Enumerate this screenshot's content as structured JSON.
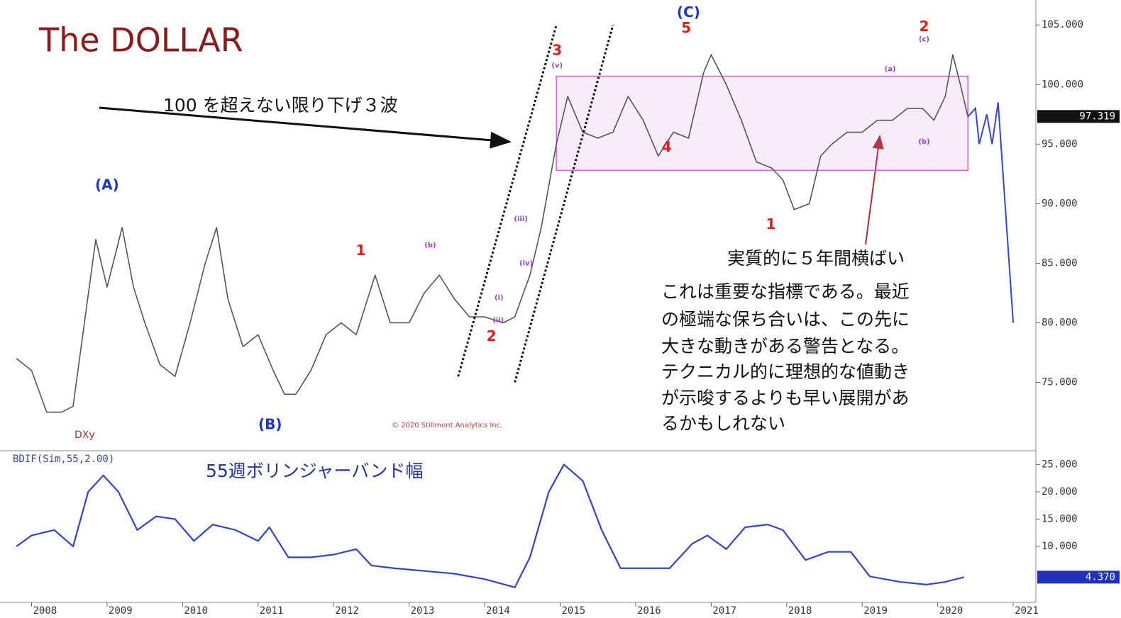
{
  "chart_data": [
    {
      "type": "line",
      "title": "The DOLLAR",
      "symbol": "DXy",
      "copyright": "© 2020 Stillmont Analytics Inc.",
      "annotations": [
        "100 を超えない限り下げ３波",
        "実質的に５年間横ばい"
      ],
      "note": [
        "これは重要な指標である。最近",
        "の極端な保ち合いは、この先に",
        "大きな動きがある警告となる。",
        "テクニカル的に理想的な値動き",
        "が示唆するよりも早い展開があ",
        "るかもしれない"
      ],
      "color": "#555555",
      "x": [
        2007.8,
        2008.0,
        2008.2,
        2008.4,
        2008.55,
        2008.7,
        2008.85,
        2009.0,
        2009.2,
        2009.35,
        2009.5,
        2009.7,
        2009.9,
        2010.1,
        2010.3,
        2010.45,
        2010.6,
        2010.8,
        2011.0,
        2011.2,
        2011.35,
        2011.5,
        2011.7,
        2011.9,
        2012.1,
        2012.3,
        2012.55,
        2012.75,
        2013.0,
        2013.2,
        2013.4,
        2013.6,
        2013.8,
        2014.0,
        2014.25,
        2014.4,
        2014.6,
        2014.75,
        2014.95,
        2015.1,
        2015.3,
        2015.5,
        2015.7,
        2015.9,
        2016.1,
        2016.3,
        2016.5,
        2016.7,
        2016.9,
        2017.0,
        2017.2,
        2017.4,
        2017.6,
        2017.8,
        2017.95,
        2018.1,
        2018.3,
        2018.45,
        2018.6,
        2018.8,
        2019.0,
        2019.2,
        2019.4,
        2019.6,
        2019.8,
        2019.95,
        2020.1,
        2020.2,
        2020.3,
        2020.4
      ],
      "values": [
        77,
        76,
        72.5,
        72.5,
        73,
        80,
        87,
        83,
        88,
        83,
        80,
        76.5,
        75.5,
        80,
        85,
        88,
        82,
        78,
        79,
        76,
        74,
        74,
        76,
        79,
        80,
        79,
        84,
        80,
        80,
        82.5,
        84,
        82,
        80.5,
        80.5,
        80,
        80.5,
        84,
        88,
        95,
        99,
        96,
        95.5,
        96,
        99,
        97,
        94,
        96,
        95.5,
        101,
        102.5,
        100,
        97,
        93.5,
        93,
        92,
        89.5,
        90,
        94,
        95,
        96,
        96,
        97,
        97,
        98,
        98,
        97,
        99,
        102.5,
        100,
        97.3
      ],
      "projection": {
        "color": "#3344dd",
        "x": [
          2020.4,
          2020.5,
          2020.55,
          2020.65,
          2020.72,
          2020.8,
          2021.0
        ],
        "values": [
          97.3,
          98,
          95,
          97.5,
          95,
          98.5,
          80
        ]
      },
      "range": {
        "color": "#cc66cc",
        "x": [
          2014.95,
          2020.4
        ],
        "y": [
          92.8,
          100.7
        ]
      },
      "channels": [
        {
          "x": [
            2013.65,
            2014.95
          ],
          "y": [
            75.5,
            105
          ]
        },
        {
          "x": [
            2014.4,
            2015.7
          ],
          "y": [
            75,
            105
          ]
        }
      ],
      "labels": [
        {
          "text": "(A)",
          "x": 2009.0,
          "y": 91.5,
          "color": "#2233cc"
        },
        {
          "text": "(B)",
          "x": 2011.16,
          "y": 71.4,
          "color": "#2233cc"
        },
        {
          "text": "(C)",
          "x": 2016.7,
          "y": 106.0,
          "color": "#2233cc"
        },
        {
          "text": "5",
          "x": 2016.67,
          "y": 104.7,
          "color": "#e0201f"
        },
        {
          "text": "3",
          "x": 2014.96,
          "y": 102.8,
          "color": "#e0201f"
        },
        {
          "text": "1",
          "x": 2012.36,
          "y": 86.0,
          "color": "#e0201f"
        },
        {
          "text": "2",
          "x": 2014.09,
          "y": 78.8,
          "color": "#e0201f"
        },
        {
          "text": "4",
          "x": 2016.41,
          "y": 94.7,
          "color": "#e0201f"
        },
        {
          "text": "1",
          "x": 2017.79,
          "y": 88.2,
          "color": "#e0201f"
        },
        {
          "text": "2",
          "x": 2019.82,
          "y": 104.8,
          "color": "#e0201f"
        },
        {
          "text": "(b)",
          "x": 2013.28,
          "y": 86.5,
          "color": "#9944bb"
        },
        {
          "text": "(a)",
          "x": 2019.37,
          "y": 101.3,
          "color": "#9944bb"
        },
        {
          "text": "(b)",
          "x": 2019.82,
          "y": 95.2,
          "color": "#9944bb"
        },
        {
          "text": "(c)",
          "x": 2019.82,
          "y": 103.8,
          "color": "#9944bb"
        },
        {
          "text": "(i)",
          "x": 2014.19,
          "y": 82.1,
          "color": "#9944bb"
        },
        {
          "text": "(ii)",
          "x": 2014.18,
          "y": 80.2,
          "color": "#9944bb"
        },
        {
          "text": "(iii)",
          "x": 2014.48,
          "y": 88.7,
          "color": "#9944bb"
        },
        {
          "text": "(iv)",
          "x": 2014.55,
          "y": 85.0,
          "color": "#9944bb"
        },
        {
          "text": "(v)",
          "x": 2014.96,
          "y": 101.6,
          "color": "#9944bb"
        }
      ],
      "last": {
        "value": 97.319,
        "label": "97.319",
        "color": "#111111"
      },
      "xlim": [
        2007.77,
        2021.3
      ],
      "ylim": [
        69.5,
        106.5
      ],
      "yticks": [
        {
          "value": 75,
          "label": "75.000"
        },
        {
          "value": 80,
          "label": "80.000"
        },
        {
          "value": 85,
          "label": "85.000"
        },
        {
          "value": 90,
          "label": "90.000"
        },
        {
          "value": 95,
          "label": "95.000"
        },
        {
          "value": 100,
          "label": "100.000"
        },
        {
          "value": 105,
          "label": "105.000"
        }
      ]
    },
    {
      "type": "line",
      "title": "55週ボリンジャーバンド幅",
      "indicator": "BDIF(Sim,55,2.00)",
      "color": "#3344cc",
      "x": [
        2007.8,
        2008.0,
        2008.3,
        2008.55,
        2008.75,
        2008.95,
        2009.15,
        2009.4,
        2009.65,
        2009.9,
        2010.15,
        2010.4,
        2010.7,
        2011.0,
        2011.15,
        2011.4,
        2011.7,
        2012.0,
        2012.3,
        2012.5,
        2012.8,
        2013.2,
        2013.6,
        2014.0,
        2014.4,
        2014.6,
        2014.85,
        2015.05,
        2015.3,
        2015.55,
        2015.8,
        2016.1,
        2016.45,
        2016.75,
        2016.95,
        2017.2,
        2017.45,
        2017.75,
        2017.95,
        2018.25,
        2018.55,
        2018.85,
        2019.1,
        2019.5,
        2019.85,
        2020.1,
        2020.35
      ],
      "values": [
        10,
        12,
        13,
        10,
        20,
        23,
        20,
        13,
        15.5,
        15,
        11,
        14,
        13,
        11,
        13.5,
        8,
        8,
        8.5,
        9.5,
        6.5,
        6,
        5.5,
        5,
        4,
        2.5,
        8,
        20,
        25,
        22,
        13,
        6,
        6,
        6,
        10.5,
        12,
        9.5,
        13.5,
        14,
        13,
        7.5,
        9,
        9,
        4.5,
        3.5,
        3,
        3.5,
        4.37
      ],
      "last": {
        "value": 4.37,
        "label": "4.370",
        "color": "#2233bb"
      },
      "xlim": [
        2007.77,
        2021.3
      ],
      "ylim": [
        0,
        27
      ],
      "yticks": [
        {
          "value": 10,
          "label": "10.000"
        },
        {
          "value": 15,
          "label": "15.000"
        },
        {
          "value": 20,
          "label": "20.000"
        },
        {
          "value": 25,
          "label": "25.000"
        }
      ],
      "xticks": [
        2008,
        2009,
        2010,
        2011,
        2012,
        2013,
        2014,
        2015,
        2016,
        2017,
        2018,
        2019,
        2020,
        2021
      ]
    }
  ]
}
